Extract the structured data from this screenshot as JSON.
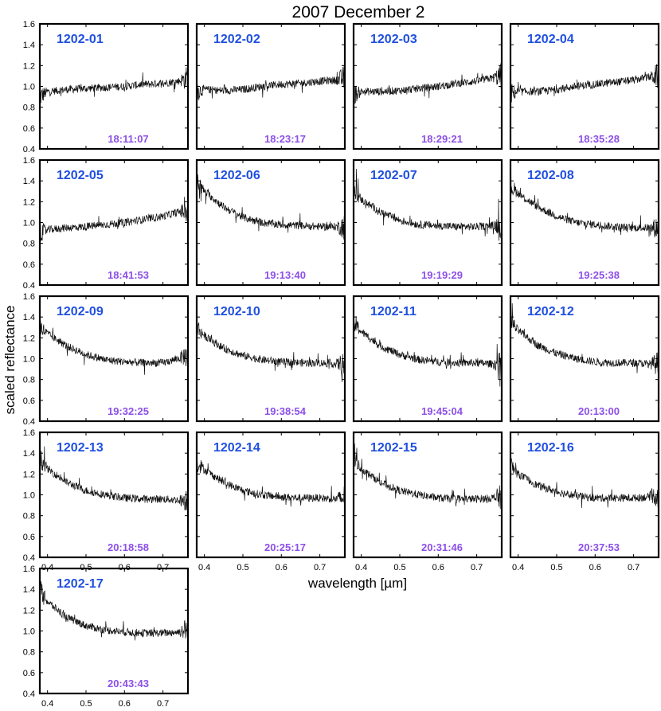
{
  "figure": {
    "title": "2007 December 2",
    "xlabel": "wavelength [µm]",
    "ylabel": "scaled reflectance",
    "colors": {
      "panel_id": "#1f4fe0",
      "panel_time": "#8c4fe8",
      "line": "#111111"
    }
  },
  "chart_data": [
    {
      "type": "line",
      "id": "1202-01",
      "time": "18:11:07",
      "xlim": [
        0.38,
        0.765
      ],
      "ylim": [
        0.4,
        1.6
      ],
      "xticks": [
        0.4,
        0.5,
        0.6,
        0.7
      ],
      "yticks": [
        0.4,
        0.6,
        0.8,
        1.0,
        1.2,
        1.4,
        1.6
      ],
      "series": [
        {
          "x": [
            0.38,
            0.4,
            0.45,
            0.5,
            0.55,
            0.6,
            0.65,
            0.7,
            0.74,
            0.765
          ],
          "y": [
            0.9,
            0.95,
            0.97,
            0.98,
            0.99,
            1.0,
            1.02,
            1.03,
            1.05,
            1.08
          ]
        }
      ]
    },
    {
      "type": "line",
      "id": "1202-02",
      "time": "18:23:17",
      "xlim": [
        0.38,
        0.765
      ],
      "ylim": [
        0.4,
        1.6
      ],
      "xticks": [
        0.4,
        0.5,
        0.6,
        0.7
      ],
      "yticks": [
        0.4,
        0.6,
        0.8,
        1.0,
        1.2,
        1.4,
        1.6
      ],
      "series": [
        {
          "x": [
            0.38,
            0.4,
            0.45,
            0.5,
            0.55,
            0.6,
            0.65,
            0.7,
            0.74,
            0.765
          ],
          "y": [
            0.95,
            0.97,
            0.96,
            0.97,
            1.0,
            1.02,
            1.03,
            1.05,
            1.06,
            1.08
          ]
        }
      ]
    },
    {
      "type": "line",
      "id": "1202-03",
      "time": "18:29:21",
      "xlim": [
        0.38,
        0.765
      ],
      "ylim": [
        0.4,
        1.6
      ],
      "xticks": [
        0.4,
        0.5,
        0.6,
        0.7
      ],
      "yticks": [
        0.4,
        0.6,
        0.8,
        1.0,
        1.2,
        1.4,
        1.6
      ],
      "series": [
        {
          "x": [
            0.38,
            0.4,
            0.45,
            0.5,
            0.55,
            0.6,
            0.65,
            0.7,
            0.74,
            0.765
          ],
          "y": [
            0.92,
            0.95,
            0.95,
            0.96,
            0.98,
            1.0,
            1.03,
            1.05,
            1.08,
            1.1
          ]
        }
      ]
    },
    {
      "type": "line",
      "id": "1202-04",
      "time": "18:35:28",
      "xlim": [
        0.38,
        0.765
      ],
      "ylim": [
        0.4,
        1.6
      ],
      "xticks": [
        0.4,
        0.5,
        0.6,
        0.7
      ],
      "yticks": [
        0.4,
        0.6,
        0.8,
        1.0,
        1.2,
        1.4,
        1.6
      ],
      "series": [
        {
          "x": [
            0.38,
            0.4,
            0.45,
            0.5,
            0.55,
            0.6,
            0.65,
            0.7,
            0.74,
            0.765
          ],
          "y": [
            0.93,
            0.95,
            0.95,
            0.97,
            1.0,
            1.02,
            1.04,
            1.06,
            1.09,
            1.1
          ]
        }
      ]
    },
    {
      "type": "line",
      "id": "1202-05",
      "time": "18:41:53",
      "xlim": [
        0.38,
        0.765
      ],
      "ylim": [
        0.4,
        1.6
      ],
      "xticks": [
        0.4,
        0.5,
        0.6,
        0.7
      ],
      "yticks": [
        0.4,
        0.6,
        0.8,
        1.0,
        1.2,
        1.4,
        1.6
      ],
      "series": [
        {
          "x": [
            0.38,
            0.4,
            0.45,
            0.5,
            0.55,
            0.6,
            0.65,
            0.7,
            0.74,
            0.765
          ],
          "y": [
            0.9,
            0.93,
            0.95,
            0.96,
            0.98,
            1.0,
            1.03,
            1.06,
            1.1,
            1.12
          ]
        }
      ]
    },
    {
      "type": "line",
      "id": "1202-06",
      "time": "19:13:40",
      "xlim": [
        0.38,
        0.765
      ],
      "ylim": [
        0.4,
        1.6
      ],
      "xticks": [
        0.4,
        0.5,
        0.6,
        0.7
      ],
      "yticks": [
        0.4,
        0.6,
        0.8,
        1.0,
        1.2,
        1.4,
        1.6
      ],
      "series": [
        {
          "x": [
            0.38,
            0.4,
            0.45,
            0.5,
            0.55,
            0.6,
            0.65,
            0.7,
            0.74,
            0.765
          ],
          "y": [
            1.4,
            1.3,
            1.15,
            1.05,
            1.0,
            0.98,
            0.97,
            0.96,
            0.96,
            0.96
          ]
        }
      ]
    },
    {
      "type": "line",
      "id": "1202-07",
      "time": "19:19:29",
      "xlim": [
        0.38,
        0.765
      ],
      "ylim": [
        0.4,
        1.6
      ],
      "xticks": [
        0.4,
        0.5,
        0.6,
        0.7
      ],
      "yticks": [
        0.4,
        0.6,
        0.8,
        1.0,
        1.2,
        1.4,
        1.6
      ],
      "series": [
        {
          "x": [
            0.38,
            0.4,
            0.45,
            0.5,
            0.55,
            0.6,
            0.65,
            0.7,
            0.74,
            0.765
          ],
          "y": [
            1.3,
            1.22,
            1.1,
            1.02,
            0.98,
            0.97,
            0.96,
            0.96,
            0.97,
            0.98
          ]
        }
      ]
    },
    {
      "type": "line",
      "id": "1202-08",
      "time": "19:25:38",
      "xlim": [
        0.38,
        0.765
      ],
      "ylim": [
        0.4,
        1.6
      ],
      "xticks": [
        0.4,
        0.5,
        0.6,
        0.7
      ],
      "yticks": [
        0.4,
        0.6,
        0.8,
        1.0,
        1.2,
        1.4,
        1.6
      ],
      "series": [
        {
          "x": [
            0.38,
            0.4,
            0.45,
            0.5,
            0.55,
            0.6,
            0.65,
            0.7,
            0.74,
            0.765
          ],
          "y": [
            1.35,
            1.28,
            1.15,
            1.06,
            1.0,
            0.98,
            0.96,
            0.95,
            0.95,
            0.95
          ]
        }
      ]
    },
    {
      "type": "line",
      "id": "1202-09",
      "time": "19:32:25",
      "xlim": [
        0.38,
        0.765
      ],
      "ylim": [
        0.4,
        1.6
      ],
      "xticks": [
        0.4,
        0.5,
        0.6,
        0.7
      ],
      "yticks": [
        0.4,
        0.6,
        0.8,
        1.0,
        1.2,
        1.4,
        1.6
      ],
      "series": [
        {
          "x": [
            0.38,
            0.4,
            0.45,
            0.5,
            0.55,
            0.6,
            0.65,
            0.7,
            0.74,
            0.765
          ],
          "y": [
            1.3,
            1.24,
            1.12,
            1.04,
            0.99,
            0.97,
            0.96,
            0.96,
            1.0,
            1.04
          ]
        }
      ]
    },
    {
      "type": "line",
      "id": "1202-10",
      "time": "19:38:54",
      "xlim": [
        0.38,
        0.765
      ],
      "ylim": [
        0.4,
        1.6
      ],
      "xticks": [
        0.4,
        0.5,
        0.6,
        0.7
      ],
      "yticks": [
        0.4,
        0.6,
        0.8,
        1.0,
        1.2,
        1.4,
        1.6
      ],
      "series": [
        {
          "x": [
            0.38,
            0.4,
            0.45,
            0.5,
            0.55,
            0.6,
            0.65,
            0.7,
            0.74,
            0.765
          ],
          "y": [
            1.3,
            1.22,
            1.1,
            1.03,
            0.99,
            0.97,
            0.96,
            0.96,
            0.95,
            0.95
          ]
        }
      ]
    },
    {
      "type": "line",
      "id": "1202-11",
      "time": "19:45:04",
      "xlim": [
        0.38,
        0.765
      ],
      "ylim": [
        0.4,
        1.6
      ],
      "xticks": [
        0.4,
        0.5,
        0.6,
        0.7
      ],
      "yticks": [
        0.4,
        0.6,
        0.8,
        1.0,
        1.2,
        1.4,
        1.6
      ],
      "series": [
        {
          "x": [
            0.38,
            0.4,
            0.45,
            0.5,
            0.55,
            0.6,
            0.65,
            0.7,
            0.74,
            0.765
          ],
          "y": [
            1.35,
            1.26,
            1.12,
            1.04,
            0.99,
            0.97,
            0.96,
            0.96,
            0.95,
            0.95
          ]
        }
      ]
    },
    {
      "type": "line",
      "id": "1202-12",
      "time": "20:13:00",
      "xlim": [
        0.38,
        0.765
      ],
      "ylim": [
        0.4,
        1.6
      ],
      "xticks": [
        0.4,
        0.5,
        0.6,
        0.7
      ],
      "yticks": [
        0.4,
        0.6,
        0.8,
        1.0,
        1.2,
        1.4,
        1.6
      ],
      "series": [
        {
          "x": [
            0.38,
            0.4,
            0.45,
            0.5,
            0.55,
            0.6,
            0.65,
            0.7,
            0.74,
            0.765
          ],
          "y": [
            1.35,
            1.27,
            1.13,
            1.05,
            1.0,
            0.97,
            0.96,
            0.96,
            0.95,
            0.95
          ]
        }
      ]
    },
    {
      "type": "line",
      "id": "1202-13",
      "time": "20:18:58",
      "xlim": [
        0.38,
        0.765
      ],
      "ylim": [
        0.4,
        1.6
      ],
      "xticks": [
        0.4,
        0.5,
        0.6,
        0.7
      ],
      "yticks": [
        0.4,
        0.6,
        0.8,
        1.0,
        1.2,
        1.4,
        1.6
      ],
      "series": [
        {
          "x": [
            0.38,
            0.4,
            0.45,
            0.5,
            0.55,
            0.6,
            0.65,
            0.7,
            0.74,
            0.765
          ],
          "y": [
            1.35,
            1.25,
            1.12,
            1.04,
            1.0,
            0.97,
            0.96,
            0.96,
            0.95,
            0.95
          ]
        }
      ]
    },
    {
      "type": "line",
      "id": "1202-14",
      "time": "20:25:17",
      "xlim": [
        0.38,
        0.765
      ],
      "ylim": [
        0.4,
        1.6
      ],
      "xticks": [
        0.4,
        0.5,
        0.6,
        0.7
      ],
      "yticks": [
        0.4,
        0.6,
        0.8,
        1.0,
        1.2,
        1.4,
        1.6
      ],
      "series": [
        {
          "x": [
            0.38,
            0.4,
            0.45,
            0.5,
            0.55,
            0.6,
            0.65,
            0.7,
            0.74,
            0.765
          ],
          "y": [
            1.32,
            1.24,
            1.12,
            1.04,
            1.0,
            0.98,
            0.97,
            0.97,
            0.96,
            0.97
          ]
        }
      ]
    },
    {
      "type": "line",
      "id": "1202-15",
      "time": "20:31:46",
      "xlim": [
        0.38,
        0.765
      ],
      "ylim": [
        0.4,
        1.6
      ],
      "xticks": [
        0.4,
        0.5,
        0.6,
        0.7
      ],
      "yticks": [
        0.4,
        0.6,
        0.8,
        1.0,
        1.2,
        1.4,
        1.6
      ],
      "series": [
        {
          "x": [
            0.38,
            0.4,
            0.45,
            0.5,
            0.55,
            0.6,
            0.65,
            0.7,
            0.74,
            0.765
          ],
          "y": [
            1.35,
            1.25,
            1.12,
            1.04,
            1.0,
            0.97,
            0.96,
            0.96,
            0.97,
            0.98
          ]
        }
      ]
    },
    {
      "type": "line",
      "id": "1202-16",
      "time": "20:37:53",
      "xlim": [
        0.38,
        0.765
      ],
      "ylim": [
        0.4,
        1.6
      ],
      "xticks": [
        0.4,
        0.5,
        0.6,
        0.7
      ],
      "yticks": [
        0.4,
        0.6,
        0.8,
        1.0,
        1.2,
        1.4,
        1.6
      ],
      "series": [
        {
          "x": [
            0.38,
            0.4,
            0.45,
            0.5,
            0.55,
            0.6,
            0.65,
            0.7,
            0.74,
            0.765
          ],
          "y": [
            1.28,
            1.2,
            1.09,
            1.03,
            0.99,
            0.97,
            0.97,
            0.97,
            0.98,
            1.0
          ]
        }
      ]
    },
    {
      "type": "line",
      "id": "1202-17",
      "time": "20:43:43",
      "xlim": [
        0.38,
        0.765
      ],
      "ylim": [
        0.4,
        1.6
      ],
      "xticks": [
        0.4,
        0.5,
        0.6,
        0.7
      ],
      "yticks": [
        0.4,
        0.6,
        0.8,
        1.0,
        1.2,
        1.4,
        1.6
      ],
      "series": [
        {
          "x": [
            0.38,
            0.4,
            0.45,
            0.5,
            0.55,
            0.6,
            0.65,
            0.7,
            0.74,
            0.765
          ],
          "y": [
            1.4,
            1.28,
            1.13,
            1.05,
            1.01,
            0.99,
            0.98,
            0.98,
            0.99,
            1.02
          ]
        }
      ]
    }
  ]
}
